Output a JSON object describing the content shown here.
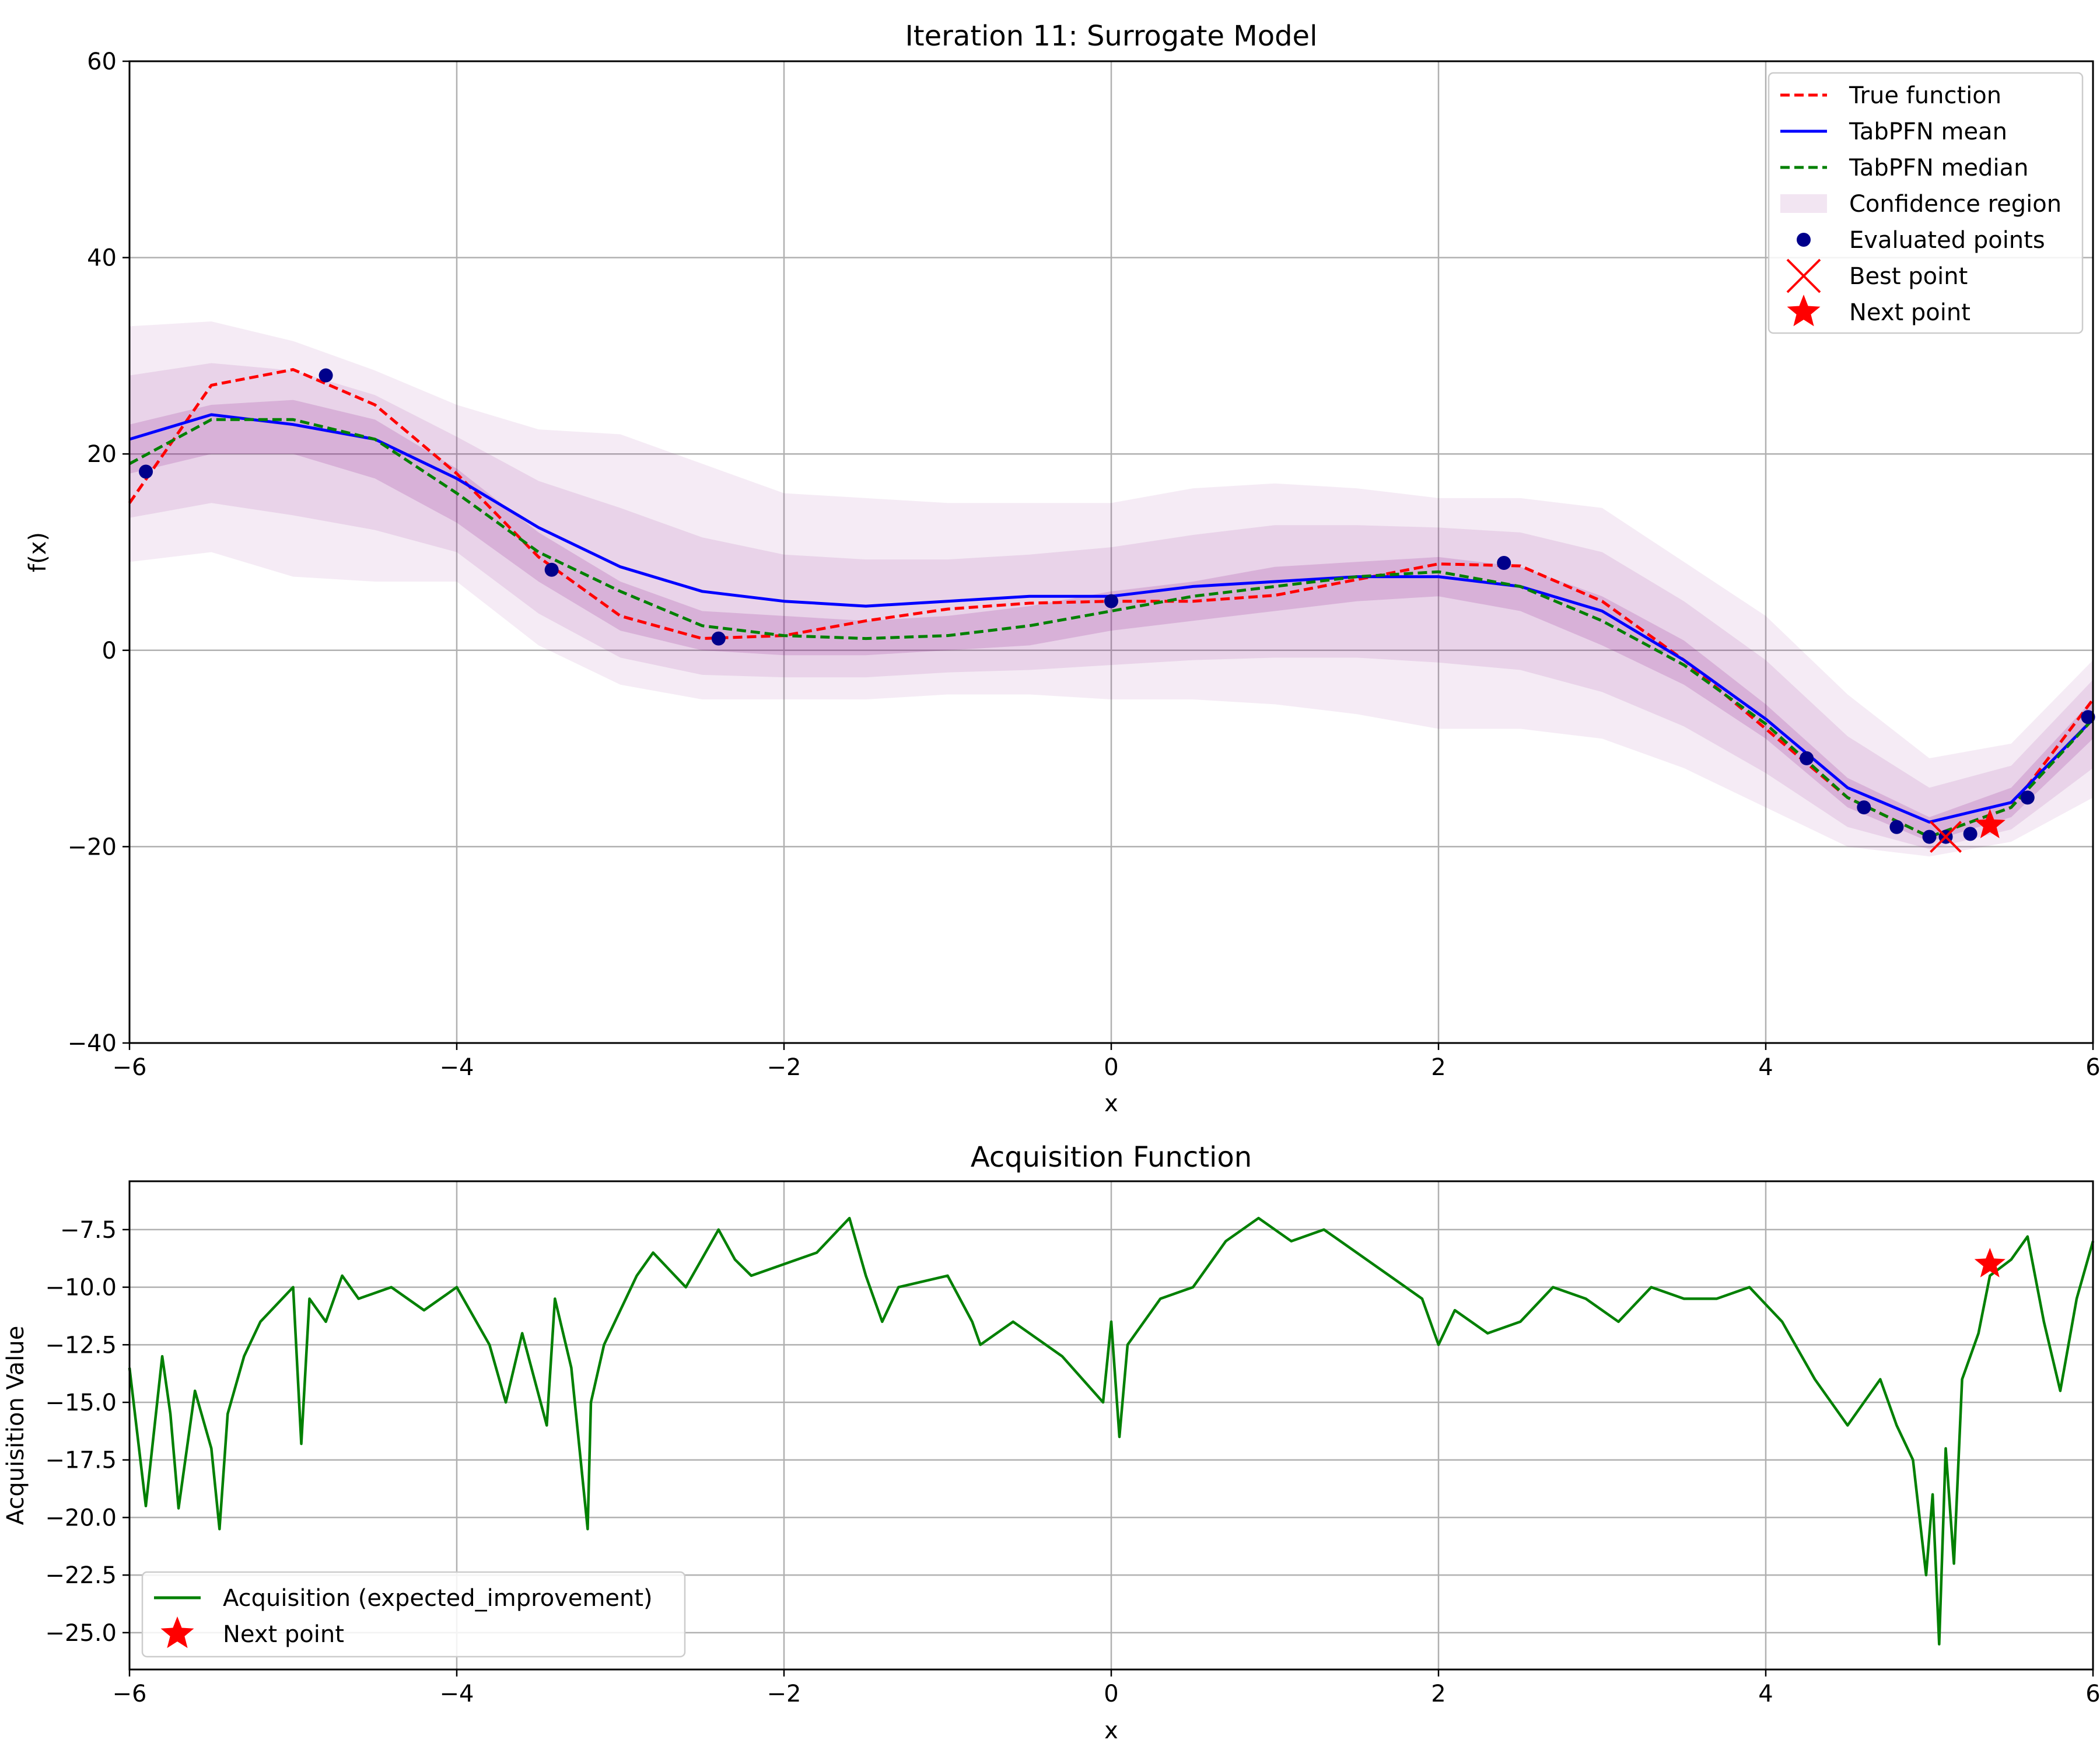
{
  "colors": {
    "true_function": "#ff0000",
    "tabpfn_mean": "#0000ff",
    "tabpfn_median": "#008000",
    "confidence": "#800080",
    "evaluated_points": "#00008b",
    "best_point": "#ff0000",
    "next_point": "#ff0000",
    "acquisition": "#008000",
    "grid": "#b0b0b0"
  },
  "chart_data": [
    {
      "type": "line",
      "title": "Iteration 11: Surrogate Model",
      "xlabel": "x",
      "ylabel": "f(x)",
      "xlim": [
        -6,
        6
      ],
      "ylim": [
        -40,
        60
      ],
      "xticks": [
        -6,
        -4,
        -2,
        0,
        2,
        4,
        6
      ],
      "xtick_labels": [
        "−6",
        "−4",
        "−2",
        "0",
        "2",
        "4",
        "6"
      ],
      "yticks": [
        -40,
        -20,
        0,
        20,
        40,
        60
      ],
      "ytick_labels": [
        "−40",
        "−20",
        "0",
        "20",
        "40",
        "60"
      ],
      "grid": true,
      "legend_position": "top-right",
      "legend": [
        "True function",
        "TabPFN mean",
        "TabPFN median",
        "Confidence region",
        "Evaluated points",
        "Best point",
        "Next point"
      ],
      "x": [
        -6.0,
        -5.5,
        -5.0,
        -4.5,
        -4.0,
        -3.5,
        -3.0,
        -2.5,
        -2.0,
        -1.5,
        -1.0,
        -0.5,
        0.0,
        0.5,
        1.0,
        1.5,
        2.0,
        2.5,
        3.0,
        3.5,
        4.0,
        4.5,
        5.0,
        5.5,
        6.0
      ],
      "series": [
        {
          "name": "True function",
          "style": "dashed",
          "values": [
            15.0,
            27.0,
            28.6,
            25.0,
            18.0,
            9.5,
            3.5,
            1.2,
            1.5,
            3.0,
            4.2,
            4.8,
            5.0,
            5.0,
            5.6,
            7.2,
            8.8,
            8.6,
            5.0,
            -1.0,
            -8.0,
            -15.0,
            -19.0,
            -16.0,
            -5.0
          ]
        },
        {
          "name": "TabPFN mean",
          "style": "solid",
          "values": [
            21.5,
            24.0,
            23.0,
            21.5,
            17.5,
            12.5,
            8.5,
            6.0,
            5.0,
            4.5,
            5.0,
            5.5,
            5.5,
            6.5,
            7.0,
            7.5,
            7.5,
            6.5,
            4.0,
            -1.0,
            -7.0,
            -14.0,
            -17.5,
            -15.5,
            -7.0
          ]
        },
        {
          "name": "TabPFN median",
          "style": "dashed",
          "values": [
            19.0,
            23.5,
            23.5,
            21.5,
            16.0,
            10.0,
            6.0,
            2.5,
            1.5,
            1.2,
            1.5,
            2.5,
            4.0,
            5.5,
            6.5,
            7.5,
            8.0,
            6.5,
            3.0,
            -1.5,
            -7.5,
            -15.0,
            -19.0,
            -16.0,
            -7.0
          ]
        }
      ],
      "confidence_region": {
        "name": "Confidence region",
        "lower_outer": [
          9.0,
          10.0,
          7.5,
          7.0,
          7.0,
          0.5,
          -3.5,
          -5.0,
          -5.0,
          -5.0,
          -4.5,
          -4.5,
          -5.0,
          -5.0,
          -5.5,
          -6.5,
          -8.0,
          -8.0,
          -9.0,
          -12.0,
          -16.0,
          -20.0,
          -21.0,
          -19.5,
          -15.0
        ],
        "lower_inner": [
          18.0,
          20.0,
          20.0,
          17.5,
          13.0,
          7.0,
          2.0,
          0.0,
          -0.5,
          -0.5,
          0.0,
          0.5,
          2.0,
          3.0,
          4.0,
          5.0,
          5.5,
          4.0,
          0.5,
          -3.5,
          -9.0,
          -16.0,
          -19.5,
          -17.0,
          -9.0
        ],
        "upper_inner": [
          23.0,
          25.0,
          25.5,
          23.5,
          18.5,
          12.0,
          7.0,
          4.0,
          3.5,
          3.0,
          3.5,
          4.5,
          6.0,
          7.0,
          8.5,
          9.0,
          9.5,
          8.5,
          5.5,
          1.0,
          -5.5,
          -13.0,
          -17.0,
          -14.0,
          -5.0
        ]
      },
      "confidence_upper_outer": [
        33.0,
        33.5,
        31.5,
        28.5,
        25.0,
        22.5,
        22.0,
        19.0,
        16.0,
        15.5,
        15.0,
        15.0,
        15.0,
        16.5,
        17.0,
        16.5,
        15.5,
        15.5,
        14.5,
        9.0,
        3.5,
        -4.5,
        -11.0,
        -9.5,
        -1.0
      ],
      "evaluated_points": {
        "name": "Evaluated points",
        "x": [
          -5.9,
          -4.8,
          -3.42,
          -2.4,
          0.0,
          2.4,
          4.25,
          4.6,
          4.8,
          5.0,
          5.1,
          5.25,
          5.6,
          5.97
        ],
        "y": [
          18.2,
          28.0,
          8.2,
          1.2,
          5.0,
          8.9,
          -11.0,
          -16.0,
          -18.0,
          -19.0,
          -19.0,
          -18.7,
          -15.0,
          -6.8
        ]
      },
      "best_point": {
        "name": "Best point",
        "x": 5.1,
        "y": -19.0
      },
      "next_point": {
        "name": "Next point",
        "x": 5.37,
        "y": -17.8
      }
    },
    {
      "type": "line",
      "title": "Acquisition Function",
      "xlabel": "x",
      "ylabel": "Acquisition Value",
      "xlim": [
        -6,
        6
      ],
      "ylim": [
        -26.6,
        -5.4
      ],
      "xticks": [
        -6,
        -4,
        -2,
        0,
        2,
        4,
        6
      ],
      "xtick_labels": [
        "−6",
        "−4",
        "−2",
        "0",
        "2",
        "4",
        "6"
      ],
      "yticks": [
        -25.0,
        -22.5,
        -20.0,
        -17.5,
        -15.0,
        -12.5,
        -10.0,
        -7.5
      ],
      "ytick_labels": [
        "−25.0",
        "−22.5",
        "−20.0",
        "−17.5",
        "−15.0",
        "−12.5",
        "−10.0",
        "−7.5"
      ],
      "grid": true,
      "legend_position": "bottom-left",
      "legend": [
        "Acquisition (expected_improvement)",
        "Next point"
      ],
      "x": [
        -6.0,
        -5.9,
        -5.8,
        -5.75,
        -5.7,
        -5.6,
        -5.5,
        -5.45,
        -5.4,
        -5.3,
        -5.2,
        -5.0,
        -4.95,
        -4.9,
        -4.8,
        -4.7,
        -4.6,
        -4.4,
        -4.2,
        -4.1,
        -4.0,
        -3.8,
        -3.7,
        -3.6,
        -3.45,
        -3.4,
        -3.3,
        -3.2,
        -3.18,
        -3.1,
        -3.0,
        -2.9,
        -2.8,
        -2.6,
        -2.4,
        -2.3,
        -2.2,
        -2.0,
        -1.8,
        -1.6,
        -1.5,
        -1.4,
        -1.3,
        -1.0,
        -0.85,
        -0.8,
        -0.6,
        -0.3,
        -0.05,
        0.0,
        0.05,
        0.1,
        0.3,
        0.5,
        0.7,
        0.9,
        1.1,
        1.3,
        1.5,
        1.7,
        1.9,
        2.0,
        2.1,
        2.3,
        2.5,
        2.7,
        2.9,
        3.1,
        3.3,
        3.5,
        3.7,
        3.9,
        4.1,
        4.3,
        4.5,
        4.7,
        4.8,
        4.9,
        4.98,
        5.02,
        5.06,
        5.1,
        5.15,
        5.2,
        5.3,
        5.37,
        5.5,
        5.6,
        5.7,
        5.8,
        5.9,
        6.0
      ],
      "series": [
        {
          "name": "Acquisition (expected_improvement)",
          "style": "solid",
          "values": [
            -13.5,
            -19.5,
            -13.0,
            -15.5,
            -19.6,
            -14.5,
            -17.0,
            -20.5,
            -15.5,
            -13.0,
            -11.5,
            -10.0,
            -16.8,
            -10.5,
            -11.5,
            -9.5,
            -10.5,
            -10.0,
            -11.0,
            -10.5,
            -10.0,
            -12.5,
            -15.0,
            -12.0,
            -16.0,
            -10.5,
            -13.5,
            -20.5,
            -15.0,
            -12.5,
            -11.0,
            -9.5,
            -8.5,
            -10.0,
            -7.5,
            -8.8,
            -9.5,
            -9.0,
            -8.5,
            -7.0,
            -9.5,
            -11.5,
            -10.0,
            -9.5,
            -11.5,
            -12.5,
            -11.5,
            -13.0,
            -15.0,
            -11.5,
            -16.5,
            -12.5,
            -10.5,
            -10.0,
            -8.0,
            -7.0,
            -8.0,
            -7.5,
            -8.5,
            -9.5,
            -10.5,
            -12.5,
            -11.0,
            -12.0,
            -11.5,
            -10.0,
            -10.5,
            -11.5,
            -10.0,
            -10.5,
            -10.5,
            -10.0,
            -11.5,
            -14.0,
            -16.0,
            -14.0,
            -16.0,
            -17.5,
            -22.5,
            -19.0,
            -25.5,
            -17.0,
            -22.0,
            -14.0,
            -12.0,
            -9.5,
            -8.8,
            -7.8,
            -11.5,
            -14.5,
            -10.5,
            -8.0
          ]
        }
      ],
      "next_point": {
        "name": "Next point",
        "x": 5.37,
        "y": -9.0
      }
    }
  ]
}
